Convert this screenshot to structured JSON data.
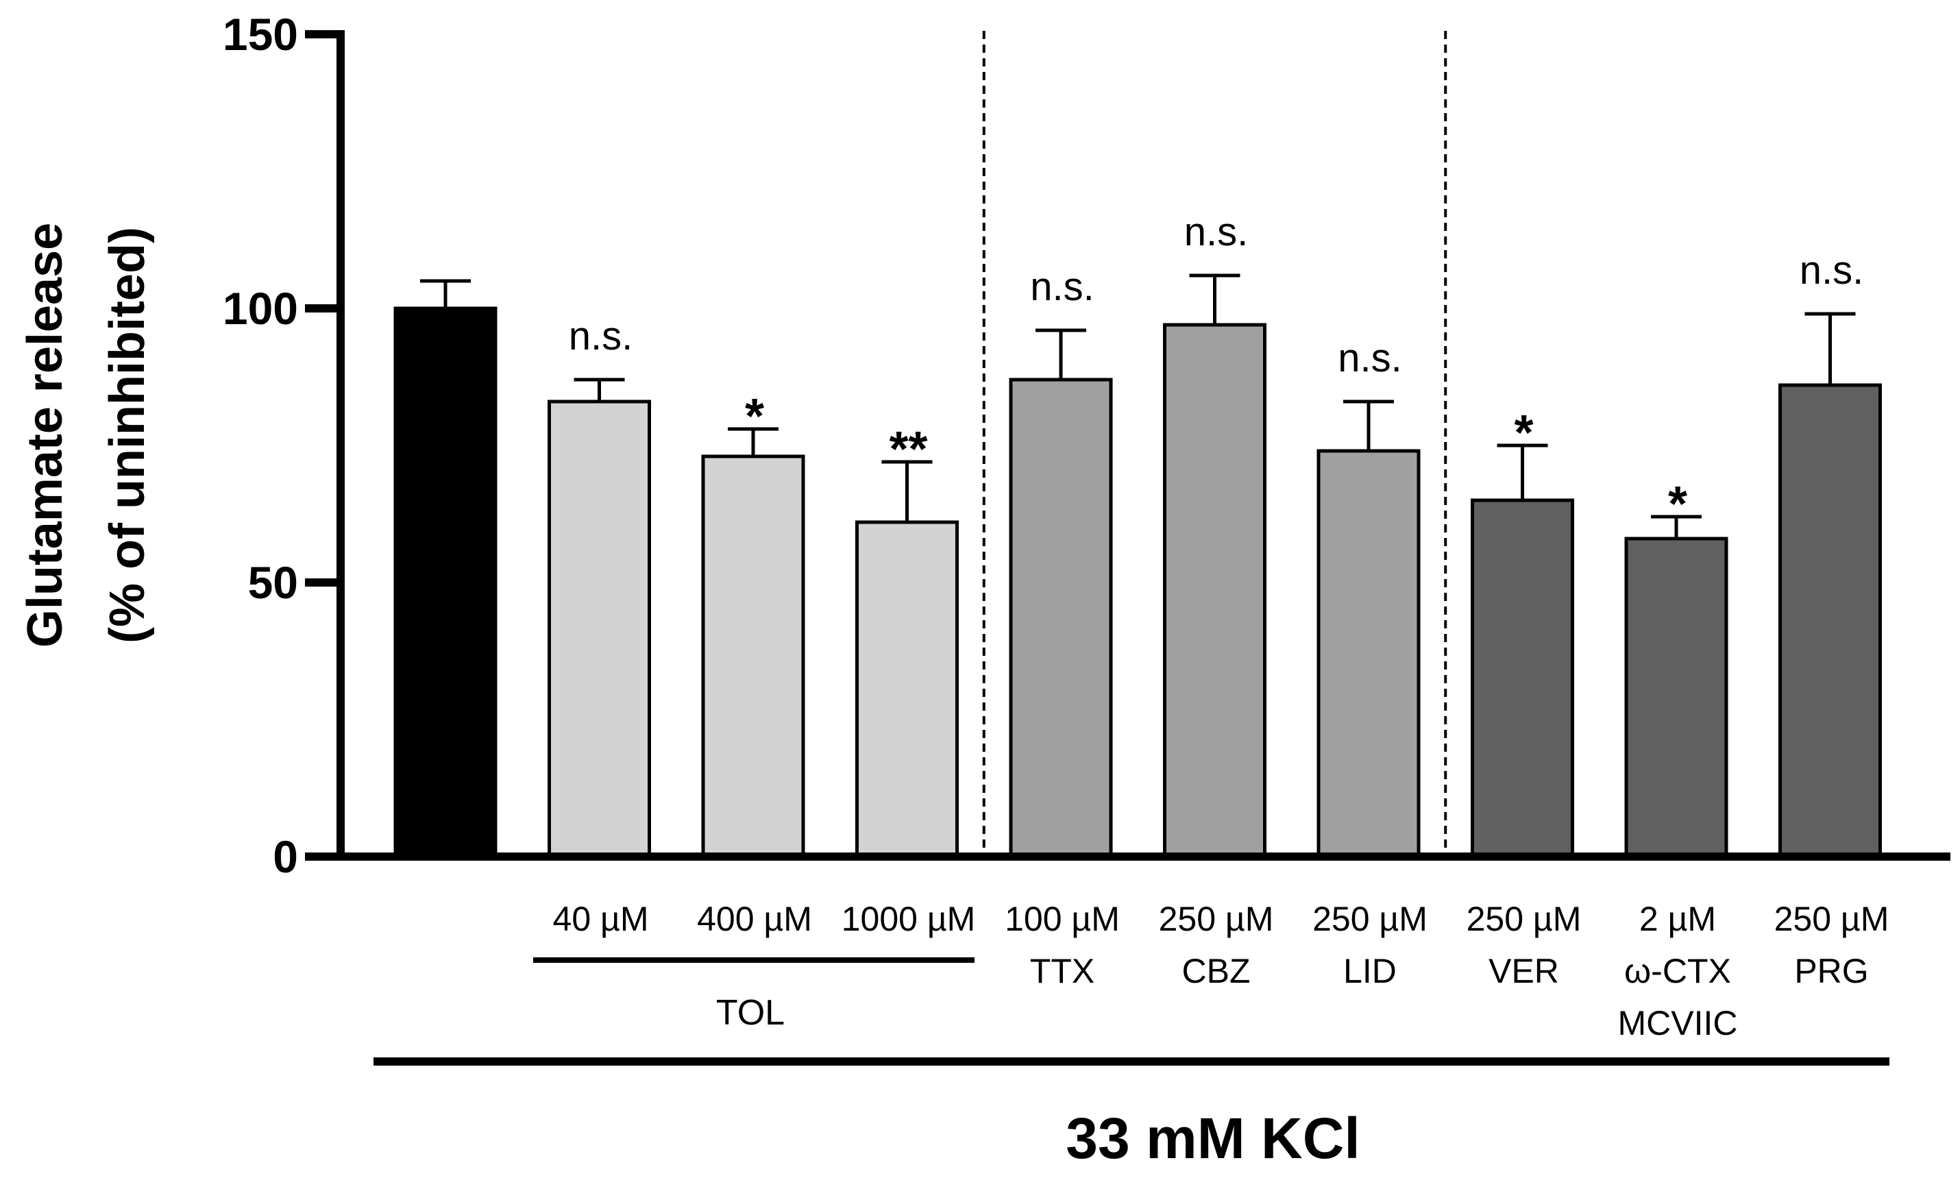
{
  "chart_data": {
    "type": "bar",
    "title": "",
    "ylabel_line1": "Glutamate release",
    "ylabel_line2": "(% of uninhibited)",
    "ylim": [
      0,
      150
    ],
    "yticks": [
      0,
      50,
      100,
      150
    ],
    "bars": [
      {
        "value": 100,
        "error": 5,
        "color": "#000000",
        "label": [],
        "sig": ""
      },
      {
        "value": 83,
        "error": 4,
        "color": "#d3d3d3",
        "label": [
          "40 µM"
        ],
        "sig": "n.s."
      },
      {
        "value": 73,
        "error": 5,
        "color": "#d3d3d3",
        "label": [
          "400 µM"
        ],
        "sig": "*"
      },
      {
        "value": 61,
        "error": 11,
        "color": "#d3d3d3",
        "label": [
          "1000 µM"
        ],
        "sig": "**"
      },
      {
        "value": 87,
        "error": 9,
        "color": "#a0a0a0",
        "label": [
          "100 µM",
          "TTX"
        ],
        "sig": "n.s."
      },
      {
        "value": 97,
        "error": 9,
        "color": "#a0a0a0",
        "label": [
          "250 µM",
          "CBZ"
        ],
        "sig": "n.s."
      },
      {
        "value": 74,
        "error": 9,
        "color": "#a0a0a0",
        "label": [
          "250 µM",
          "LID"
        ],
        "sig": "n.s."
      },
      {
        "value": 65,
        "error": 10,
        "color": "#606060",
        "label": [
          "250 µM",
          "VER"
        ],
        "sig": "*"
      },
      {
        "value": 58,
        "error": 4,
        "color": "#606060",
        "label": [
          "2 µM",
          "ω-CTX",
          "MCVIIC"
        ],
        "sig": "*"
      },
      {
        "value": 86,
        "error": 13,
        "color": "#606060",
        "label": [
          "250 µM",
          "PRG"
        ],
        "sig": "n.s."
      }
    ],
    "group_label": "TOL",
    "group_bars": [
      1,
      3
    ],
    "main_label": "33 mM KCl",
    "dividers_after": [
      3,
      6
    ]
  }
}
